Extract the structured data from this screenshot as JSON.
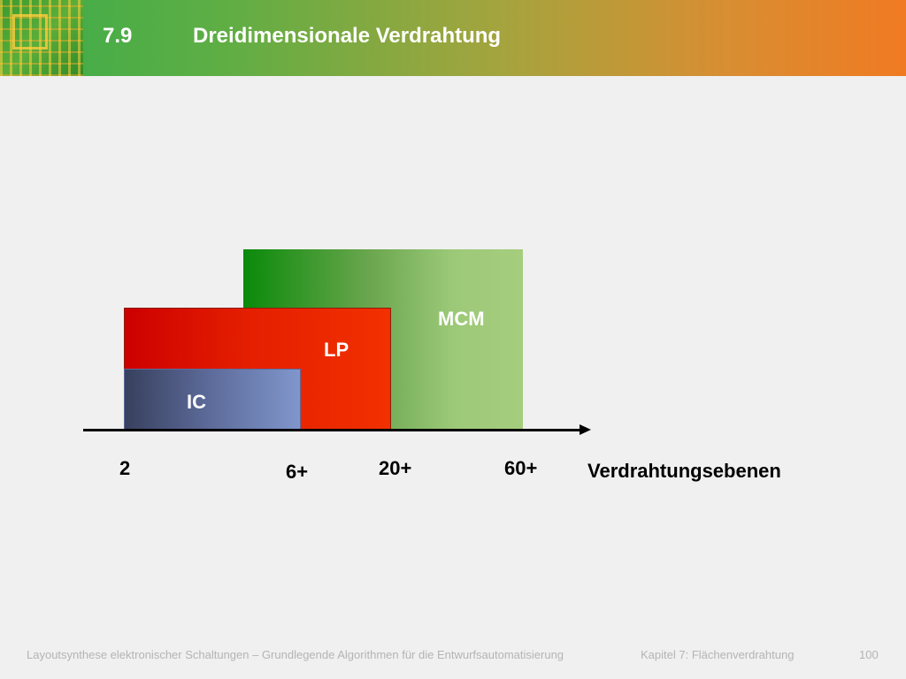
{
  "header": {
    "number": "7.9",
    "title": "Dreidimensionale Verdrahtung"
  },
  "diagram": {
    "boxes": {
      "mcm": "MCM",
      "lp": "LP",
      "ic": "IC"
    },
    "ticks": [
      "2",
      "6+",
      "20+",
      "60+"
    ],
    "axis_label": "Verdrahtungsebenen"
  },
  "footer": {
    "course": "Layoutsynthese elektronischer Schaltungen – Grundlegende Algorithmen für die Entwurfsautomatisierung",
    "chapter": "Kapitel 7: Flächenverdrahtung",
    "page": "100"
  }
}
